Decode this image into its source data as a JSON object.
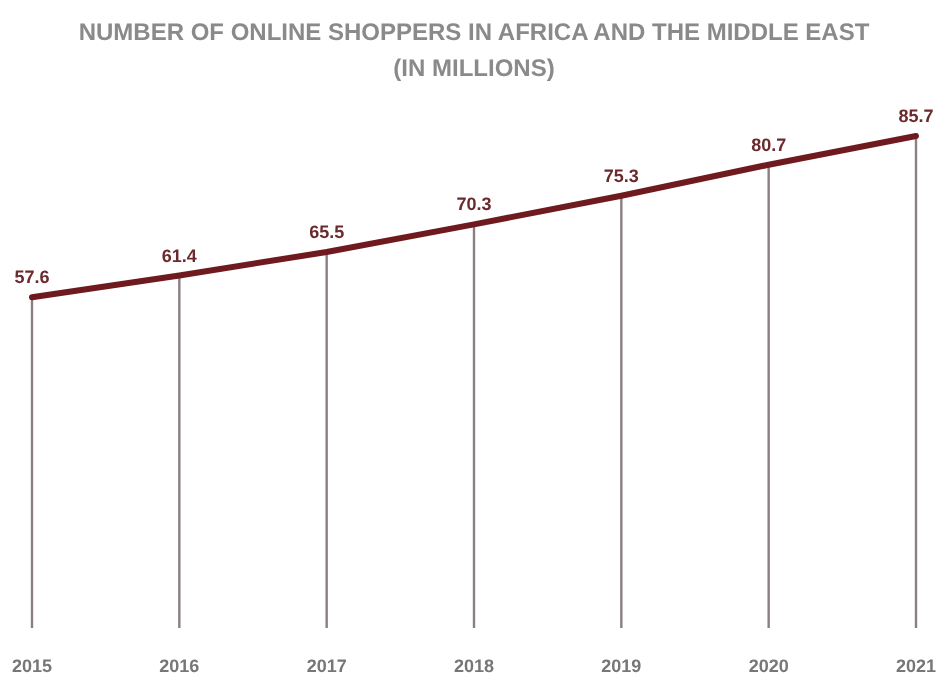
{
  "chart_data": {
    "type": "line",
    "title": "NUMBER OF ONLINE SHOPPERS IN AFRICA AND THE MIDDLE EAST\n(IN MILLIONS)",
    "categories": [
      "2015",
      "2016",
      "2017",
      "2018",
      "2019",
      "2020",
      "2021"
    ],
    "series": [
      {
        "type": "bar",
        "color": "#8c7f7f",
        "values": [
          57.6,
          61.4,
          65.5,
          70.3,
          75.3,
          80.7,
          85.7
        ]
      },
      {
        "color": "#6e1a1e",
        "values": [
          57.6,
          61.4,
          65.5,
          70.3,
          75.3,
          80.7,
          85.7
        ],
        "value_labels": [
          "57.6",
          "61.4",
          "65.5",
          "70.3",
          "75.3",
          "80.7",
          "85.7"
        ]
      }
    ],
    "tick_labels": "x"
  }
}
